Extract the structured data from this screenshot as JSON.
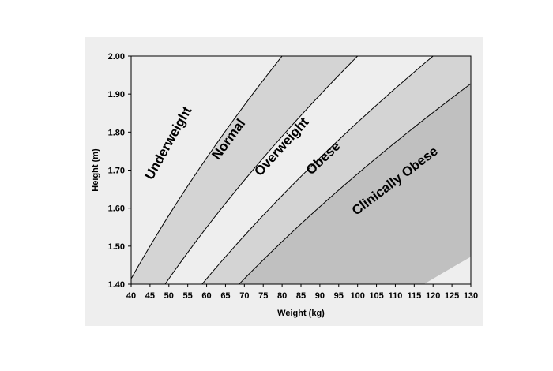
{
  "chart_data": {
    "type": "area",
    "xlabel": "Weight (kg)",
    "ylabel": "Height (m)",
    "xlim": [
      40,
      130
    ],
    "ylim": [
      1.4,
      2.0
    ],
    "x_ticks": [
      "40",
      "45",
      "50",
      "55",
      "60",
      "65",
      "70",
      "75",
      "80",
      "85",
      "90",
      "95",
      "100",
      "105",
      "110",
      "115",
      "120",
      "125",
      "130"
    ],
    "y_ticks": [
      "1.40",
      "1.50",
      "1.60",
      "1.70",
      "1.80",
      "1.90",
      "2.00"
    ],
    "boundaries_bmi": [
      20,
      25,
      30,
      35
    ],
    "regions": [
      {
        "name": "Underweight",
        "bmi_range": [
          0,
          20
        ],
        "color": "#eeeeee",
        "label_at": {
          "weight": 50,
          "height": 1.77
        }
      },
      {
        "name": "Normal",
        "bmi_range": [
          20,
          25
        ],
        "color": "#d4d4d4",
        "label_at": {
          "weight": 66,
          "height": 1.78
        }
      },
      {
        "name": "Overweight",
        "bmi_range": [
          25,
          30
        ],
        "color": "#eeeeee",
        "label_at": {
          "weight": 80,
          "height": 1.76
        }
      },
      {
        "name": "Obese",
        "bmi_range": [
          30,
          35
        ],
        "color": "#d4d4d4",
        "label_at": {
          "weight": 91,
          "height": 1.73
        }
      },
      {
        "name": "Clinically Obese",
        "bmi_range": [
          35,
          60
        ],
        "color": "#c0c0c0",
        "label_at": {
          "weight": 110,
          "height": 1.67
        }
      }
    ],
    "grid": false,
    "legend": "none"
  }
}
